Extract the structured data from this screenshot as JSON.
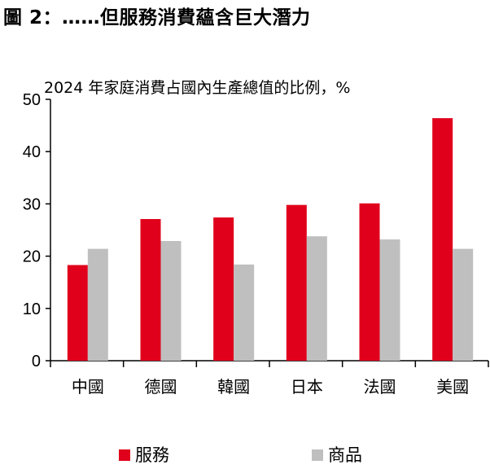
{
  "figure_title": "圖 2：……但服務消費蘊含巨大潛力",
  "chart_data": {
    "type": "bar",
    "title": "2024 年家庭消費占國內生產總值的比例，%",
    "categories": [
      "中國",
      "德國",
      "韓國",
      "日本",
      "法國",
      "美國"
    ],
    "series": [
      {
        "name": "服務",
        "color": "#e0001b",
        "values": [
          18.3,
          27.1,
          27.4,
          29.8,
          30.1,
          46.4
        ]
      },
      {
        "name": "商品",
        "color": "#bfbfbf",
        "values": [
          21.4,
          22.9,
          18.4,
          23.8,
          23.2,
          21.4
        ]
      }
    ],
    "ylim": [
      0,
      50
    ],
    "yticks": [
      0,
      10,
      20,
      30,
      40,
      50
    ],
    "grid": false,
    "legend": "bottom"
  }
}
